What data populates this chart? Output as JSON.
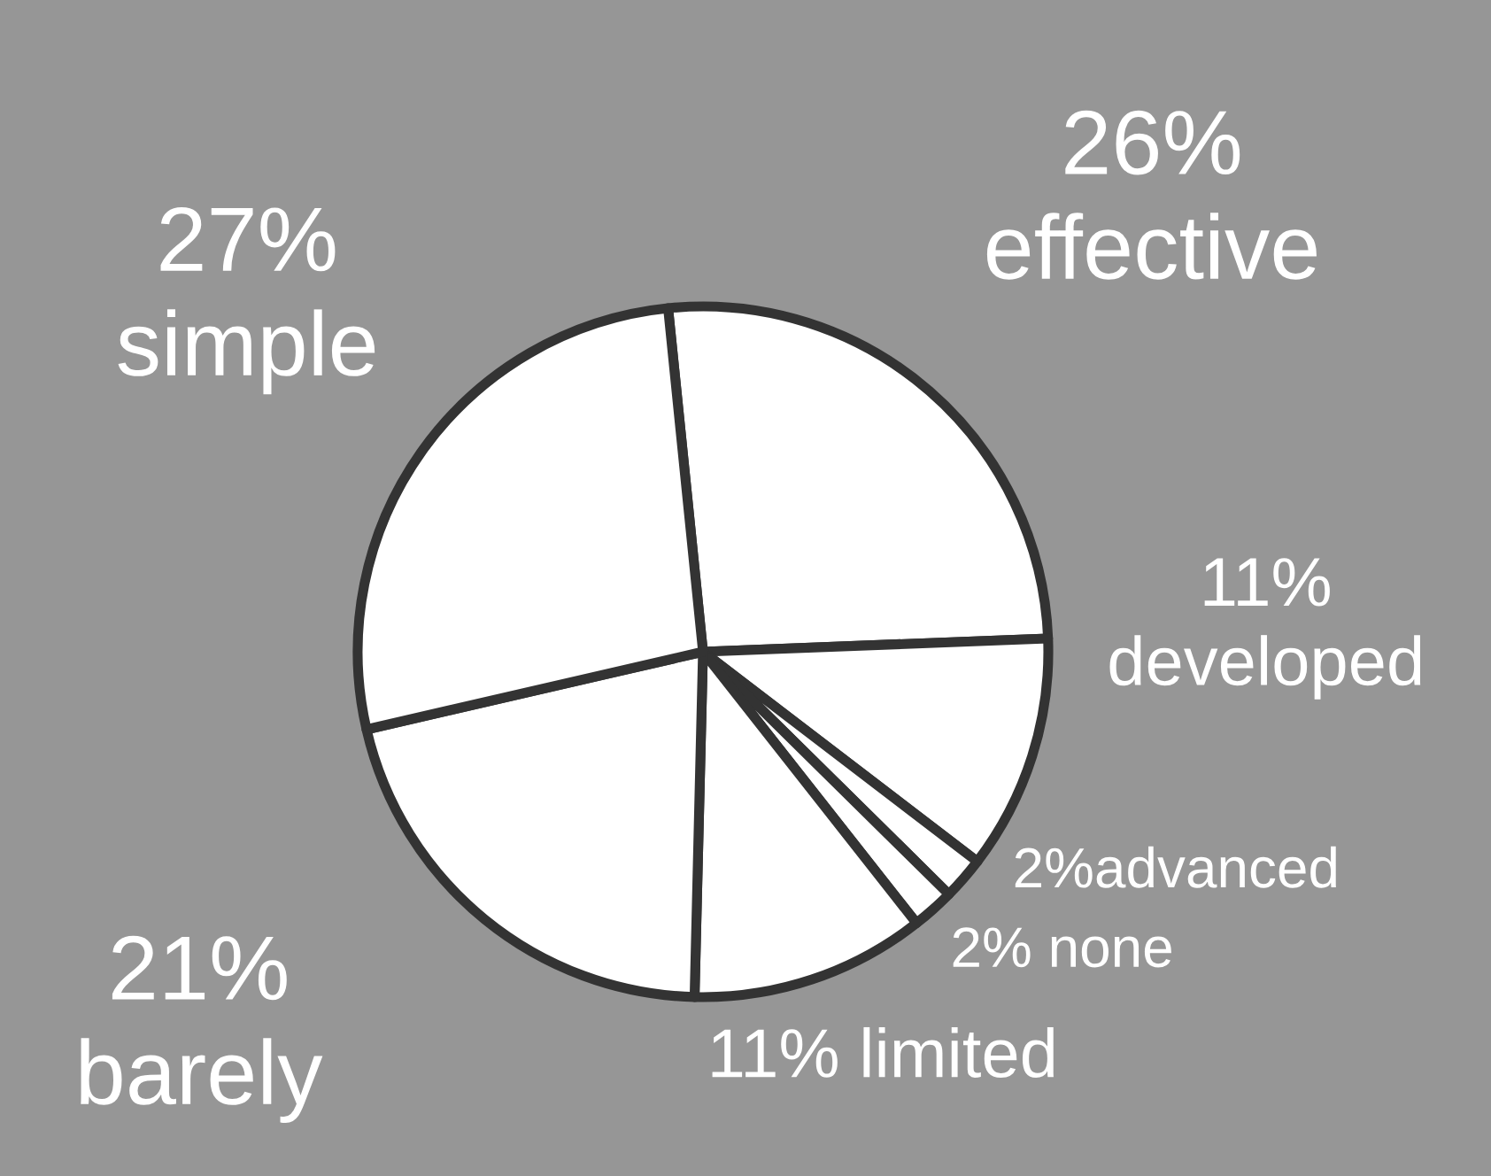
{
  "chart_data": {
    "type": "pie",
    "categories": [
      "26%\neffective",
      "11%\ndeveloped",
      "2%advanced",
      "2% none",
      "11% limited",
      "21%\nbarely",
      "27%\nsimple"
    ],
    "values": [
      26,
      11,
      2,
      2,
      11,
      21,
      27
    ],
    "colors": [
      "#ffffff",
      "#ffffff",
      "#ffffff",
      "#ffffff",
      "#ffffff",
      "#ffffff",
      "#ffffff"
    ]
  }
}
